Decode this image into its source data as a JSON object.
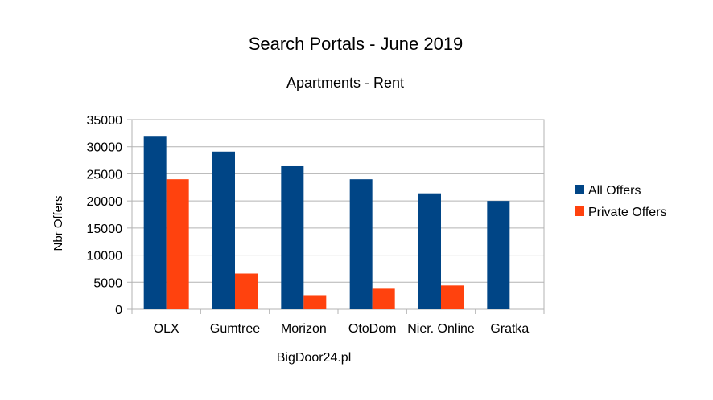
{
  "chart_data": {
    "type": "bar",
    "title": "Search Portals - June 2019",
    "subtitle": "Apartments - Rent",
    "xlabel": "BigDoor24.pl",
    "ylabel": "Nbr Offers",
    "ylim": [
      0,
      35000
    ],
    "yticks": [
      0,
      5000,
      10000,
      15000,
      20000,
      25000,
      30000,
      35000
    ],
    "grid": true,
    "legend_position": "right",
    "categories": [
      "OLX",
      "Gumtree",
      "Morizon",
      "OtoDom",
      "Nier. Online",
      "Gratka"
    ],
    "series": [
      {
        "name": "All Offers",
        "color": "#004586",
        "values": [
          32000,
          29100,
          26400,
          24000,
          21400,
          20000
        ]
      },
      {
        "name": "Private Offers",
        "color": "#ff420e",
        "values": [
          24000,
          6600,
          2600,
          3800,
          4400,
          0
        ]
      }
    ]
  }
}
